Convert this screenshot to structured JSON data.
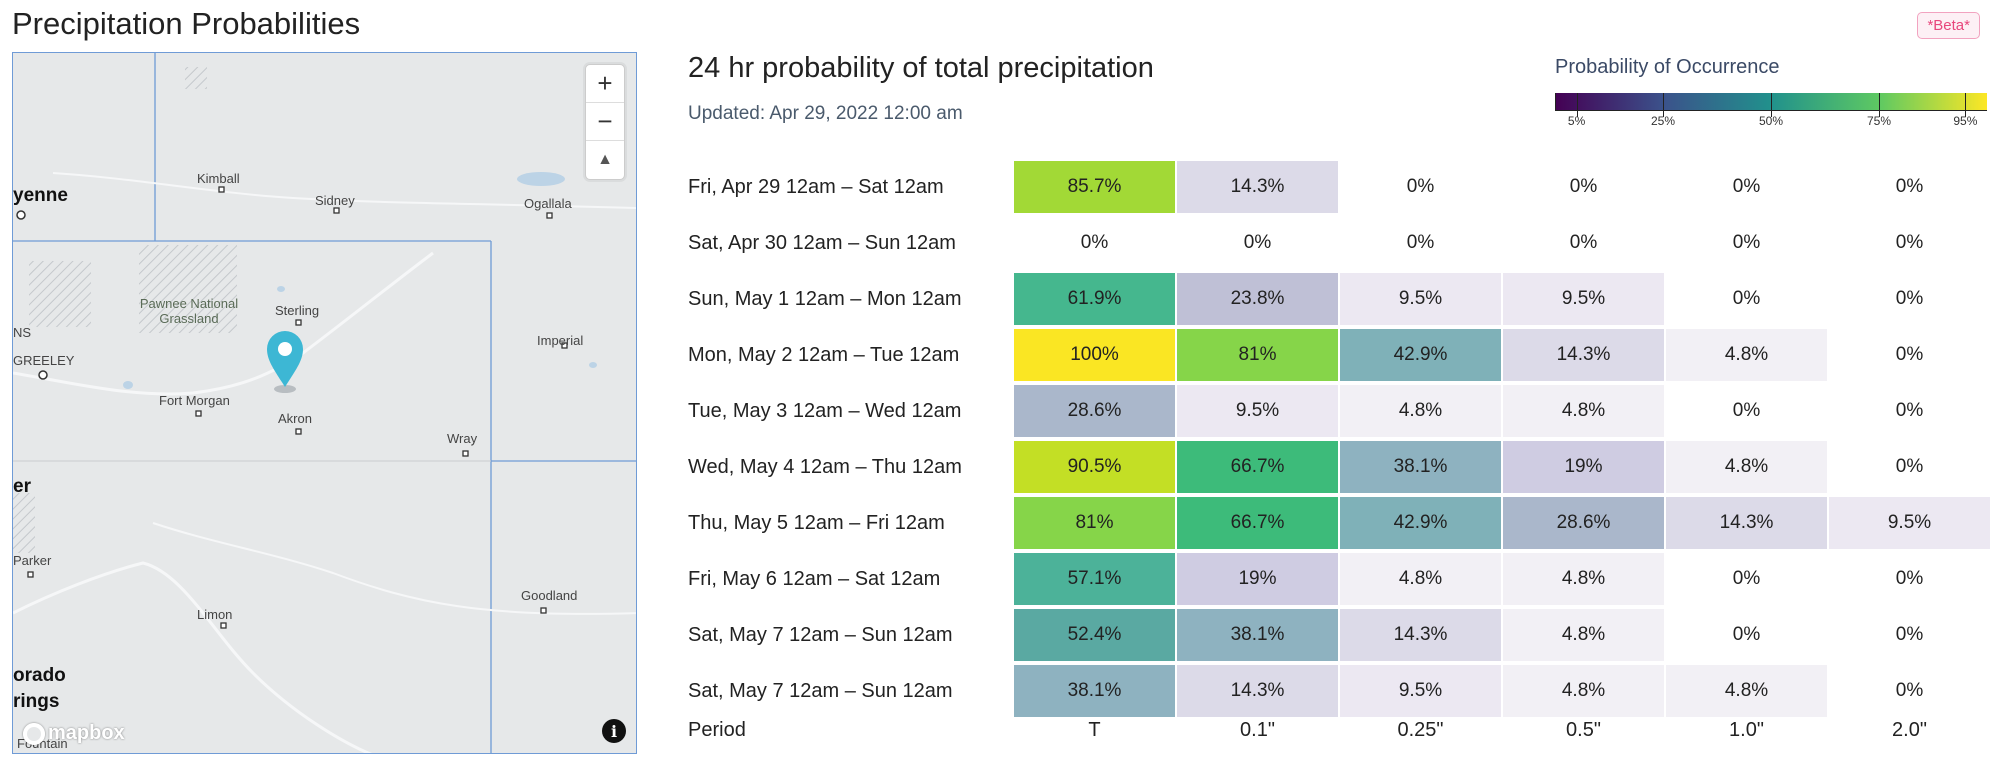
{
  "page": {
    "title": "Precipitation Probabilities",
    "beta_badge": "*Beta*"
  },
  "map": {
    "zoom_in": "+",
    "zoom_out": "−",
    "reset_north": "▲",
    "info": "i",
    "attribution_logo": "mapbox",
    "labels": {
      "cheyenne": "yenne",
      "kimball": "Kimball",
      "sidney": "Sidney",
      "ogallala": "Ogallala",
      "pawnee": "Pawnee National Grassland",
      "sterling": "Sterling",
      "ns": "NS",
      "greeley": "GREELEY",
      "fort_morgan": "Fort Morgan",
      "akron": "Akron",
      "imperial": "Imperial",
      "wray": "Wray",
      "er": "er",
      "parker": "Parker",
      "goodland": "Goodland",
      "limon": "Limon",
      "orado": "orado",
      "rings": "rings",
      "fountain": "Fountain"
    }
  },
  "chart": {
    "title": "24 hr probability of total precipitation",
    "updated": "Updated: Apr 29, 2022 12:00 am"
  },
  "legend": {
    "title": "Probability of Occurrence",
    "ticks": [
      "5%",
      "25%",
      "50%",
      "75%",
      "95%"
    ],
    "colors": [
      "#440154",
      "#3b528b",
      "#21918c",
      "#5ec962",
      "#fde725"
    ]
  },
  "chart_data": {
    "type": "heatmap",
    "title": "24 hr probability of total precipitation",
    "xlabel": "Period",
    "columns": [
      "T",
      "0.1\"",
      "0.25\"",
      "0.5\"",
      "1.0\"",
      "2.0\""
    ],
    "rows": [
      {
        "period": "Fri, Apr 29 12am – Sat 12am",
        "values": [
          "85.7%",
          "14.3%",
          "0%",
          "0%",
          "0%",
          "0%"
        ],
        "colors": [
          "#a2d936",
          "#dcdae8",
          "",
          "",
          "",
          ""
        ]
      },
      {
        "period": "Sat, Apr 30 12am – Sun 12am",
        "values": [
          "0%",
          "0%",
          "0%",
          "0%",
          "0%",
          "0%"
        ],
        "colors": [
          "",
          "",
          "",
          "",
          "",
          ""
        ]
      },
      {
        "period": "Sun, May 1 12am – Mon 12am",
        "values": [
          "61.9%",
          "23.8%",
          "9.5%",
          "9.5%",
          "0%",
          "0%"
        ],
        "colors": [
          "#45b78e",
          "#bfc0d6",
          "#ece8f2",
          "#ece8f2",
          "",
          ""
        ]
      },
      {
        "period": "Mon, May 2 12am – Tue 12am",
        "values": [
          "100%",
          "81%",
          "42.9%",
          "14.3%",
          "4.8%",
          "0%"
        ],
        "colors": [
          "#fae623",
          "#86d549",
          "#7fb1b8",
          "#dcdae8",
          "#f2f0f5",
          ""
        ]
      },
      {
        "period": "Tue, May 3 12am – Wed 12am",
        "values": [
          "28.6%",
          "9.5%",
          "4.8%",
          "4.8%",
          "0%",
          "0%"
        ],
        "colors": [
          "#aab7cb",
          "#ece8f2",
          "#f2f0f5",
          "#f2f0f5",
          "",
          ""
        ]
      },
      {
        "period": "Wed, May 4 12am – Thu 12am",
        "values": [
          "90.5%",
          "66.7%",
          "38.1%",
          "19%",
          "4.8%",
          "0%"
        ],
        "colors": [
          "#c3df25",
          "#3dbb7a",
          "#8eb2c0",
          "#cfcce2",
          "#f2f0f5",
          ""
        ]
      },
      {
        "period": "Thu, May 5 12am – Fri 12am",
        "values": [
          "81%",
          "66.7%",
          "42.9%",
          "28.6%",
          "14.3%",
          "9.5%"
        ],
        "colors": [
          "#86d549",
          "#3dbb7a",
          "#7fb1b8",
          "#aab7cb",
          "#dcdae8",
          "#ece8f2"
        ]
      },
      {
        "period": "Fri, May 6 12am – Sat 12am",
        "values": [
          "57.1%",
          "19%",
          "4.8%",
          "4.8%",
          "0%",
          "0%"
        ],
        "colors": [
          "#4cb299",
          "#cfcce2",
          "#f2f0f5",
          "#f2f0f5",
          "",
          ""
        ]
      },
      {
        "period": "Sat, May 7 12am – Sun 12am",
        "values": [
          "52.4%",
          "38.1%",
          "14.3%",
          "4.8%",
          "0%",
          "0%"
        ],
        "colors": [
          "#5aa9a2",
          "#8eb2c0",
          "#dcdae8",
          "#f2f0f5",
          "",
          ""
        ]
      },
      {
        "period": "Sat, May 7 12am – Sun 12am",
        "values": [
          "38.1%",
          "14.3%",
          "9.5%",
          "4.8%",
          "4.8%",
          "0%"
        ],
        "colors": [
          "#8eb2c0",
          "#dcdae8",
          "#ece8f2",
          "#f2f0f5",
          "#f2f0f5",
          ""
        ]
      }
    ]
  }
}
